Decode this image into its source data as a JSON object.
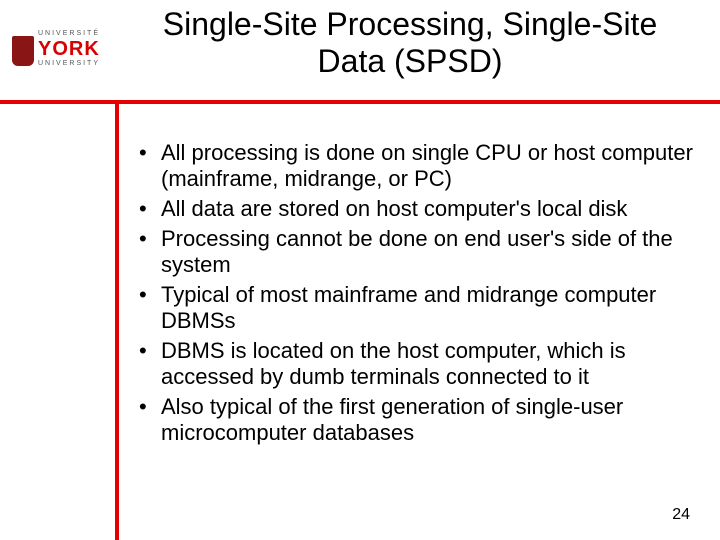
{
  "logo": {
    "topline": "UNIVERSITÉ",
    "name": "YORK",
    "bottomline": "UNIVERSITY"
  },
  "title": "Single-Site Processing, Single-Site Data (SPSD)",
  "bullets": [
    "All processing is done on single CPU or host computer (mainframe, midrange, or PC)",
    "All data are stored on host computer's local disk",
    "Processing cannot be done on end user's side of the system",
    "Typical of most mainframe and midrange computer DBMSs",
    "DBMS is located on the host computer, which is accessed by dumb terminals connected to it",
    "Also typical of the first generation of single-user microcomputer databases"
  ],
  "page_number": "24",
  "colors": {
    "accent": "#e60000",
    "text": "#000000",
    "background": "#ffffff"
  }
}
